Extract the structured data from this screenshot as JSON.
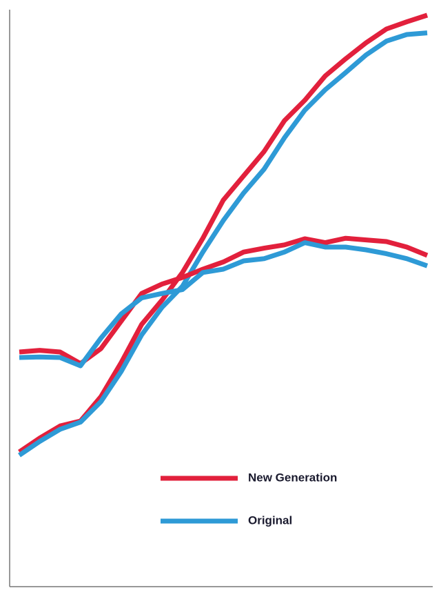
{
  "chart_data": {
    "type": "line",
    "x": [
      0,
      1,
      2,
      3,
      4,
      5,
      6,
      7,
      8,
      9,
      10,
      11,
      12,
      13,
      14,
      15,
      16,
      17,
      18,
      19,
      20
    ],
    "xlim": [
      0,
      20
    ],
    "ylim": [
      0,
      105
    ],
    "series": [
      {
        "name": "New Generation",
        "color": "#e2203c",
        "values": [
          24.4,
          26.9,
          29.1,
          30,
          34.4,
          40.6,
          47.5,
          51.9,
          56.9,
          63.1,
          70,
          74.4,
          78.8,
          84.4,
          88.1,
          92.5,
          95.6,
          98.5,
          101,
          102.3,
          103.5
        ]
      },
      {
        "name": "Original",
        "color": "#2e9ad6",
        "values": [
          23.8,
          26.3,
          28.5,
          29.8,
          33.5,
          39,
          45.6,
          50.6,
          54.4,
          60.6,
          66.3,
          71.3,
          75.6,
          81.3,
          86.3,
          90,
          93.1,
          96.3,
          98.8,
          100,
          100.3
        ]
      },
      {
        "color": "#e2203c",
        "values": [
          42.5,
          42.8,
          42.5,
          40.4,
          43.1,
          48.1,
          53.1,
          54.8,
          56,
          57.5,
          58.8,
          60.6,
          61.3,
          61.9,
          63,
          62.3,
          63.1,
          62.8,
          62.5,
          61.5,
          60
        ]
      },
      {
        "color": "#2e9ad6",
        "values": [
          41.5,
          41.6,
          41.5,
          40,
          45,
          49.4,
          52.3,
          53.1,
          53.8,
          56.9,
          57.5,
          59,
          59.4,
          60.6,
          62.3,
          61.5,
          61.5,
          61,
          60.3,
          59.4,
          58.1
        ]
      }
    ]
  }
}
